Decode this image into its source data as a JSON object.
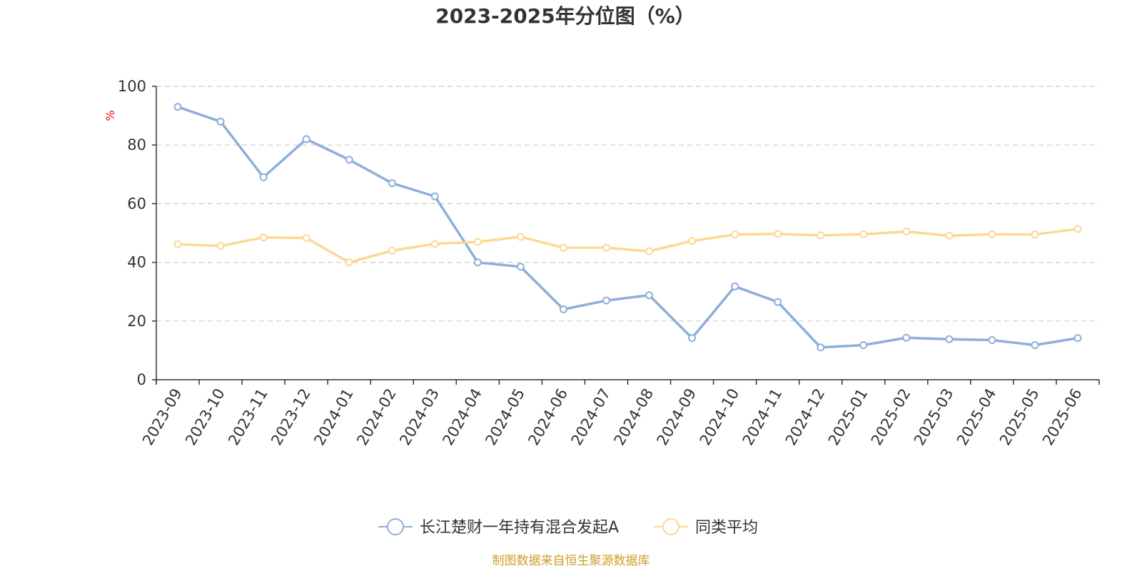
{
  "colors": {
    "series_a": "#8eaedb",
    "series_b": "#fcd894",
    "grid": "#cccccc",
    "axis": "#333333",
    "unit": "#ff0000",
    "source": "#c9a02a"
  },
  "chart_data": {
    "type": "line",
    "title": "2023-2025年分位图（%）",
    "ylabel": "%",
    "xlabel": "",
    "ylim": [
      0,
      100
    ],
    "yticks": [
      0,
      20,
      40,
      60,
      80,
      100
    ],
    "grid": true,
    "legend_position": "bottom-center",
    "categories": [
      "2023-09",
      "2023-10",
      "2023-11",
      "2023-12",
      "2024-01",
      "2024-02",
      "2024-03",
      "2024-04",
      "2024-05",
      "2024-06",
      "2024-07",
      "2024-08",
      "2024-09",
      "2024-10",
      "2024-11",
      "2024-12",
      "2025-01",
      "2025-02",
      "2025-03",
      "2025-04",
      "2025-05",
      "2025-06"
    ],
    "series": [
      {
        "name": "长江楚财一年持有混合发起A",
        "values": [
          93.0,
          88.0,
          69.0,
          82.0,
          75.0,
          67.0,
          62.5,
          40.0,
          38.5,
          24.0,
          27.0,
          28.8,
          14.2,
          31.8,
          26.5,
          11.0,
          11.8,
          14.3,
          13.8,
          13.5,
          11.8,
          14.2
        ]
      },
      {
        "name": "同类平均",
        "values": [
          46.2,
          45.6,
          48.5,
          48.3,
          40.0,
          44.0,
          46.3,
          47.0,
          48.7,
          45.0,
          45.0,
          43.8,
          47.3,
          49.5,
          49.7,
          49.2,
          49.6,
          50.5,
          49.1,
          49.6,
          49.5,
          51.4
        ]
      }
    ]
  },
  "footer": {
    "source": "制图数据来自恒生聚源数据库"
  }
}
